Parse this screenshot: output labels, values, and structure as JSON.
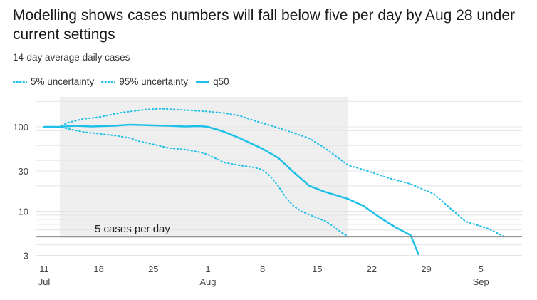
{
  "chart_data": {
    "type": "line",
    "title": "Modelling shows cases numbers will fall below five per day by Aug 28 under current settings",
    "subtitle": "14-day average daily cases",
    "y_scale": "log",
    "ylim": [
      3,
      200
    ],
    "y_ticks": [
      {
        "value": 100,
        "label": "100"
      },
      {
        "value": 30,
        "label": "30"
      },
      {
        "value": 10,
        "label": "10"
      },
      {
        "value": 3,
        "label": "3"
      }
    ],
    "x_ticks": [
      {
        "date": "2021-07-11",
        "label": "11",
        "sublabel": "Jul"
      },
      {
        "date": "2021-07-18",
        "label": "18",
        "sublabel": ""
      },
      {
        "date": "2021-07-25",
        "label": "25",
        "sublabel": ""
      },
      {
        "date": "2021-08-01",
        "label": "1",
        "sublabel": "Aug"
      },
      {
        "date": "2021-08-08",
        "label": "8",
        "sublabel": ""
      },
      {
        "date": "2021-08-15",
        "label": "15",
        "sublabel": ""
      },
      {
        "date": "2021-08-22",
        "label": "22",
        "sublabel": ""
      },
      {
        "date": "2021-08-29",
        "label": "29",
        "sublabel": ""
      },
      {
        "date": "2021-09-05",
        "label": "5",
        "sublabel": "Sep"
      }
    ],
    "xlim": [
      "2021-07-10",
      "2021-09-09"
    ],
    "grid": true,
    "legend_position": "top-left",
    "shaded_region": {
      "from": "2021-07-13",
      "to": "2021-08-19",
      "color": "#efefef"
    },
    "reference_line": {
      "value": 5,
      "label": "5 cases per day",
      "color": "#888888"
    },
    "series": [
      {
        "name": "5% uncertainty",
        "style": "dotted",
        "color": "#1ec0e8",
        "points": [
          [
            "2021-07-11",
            100
          ],
          [
            "2021-07-13",
            100
          ],
          [
            "2021-07-14",
            95
          ],
          [
            "2021-07-16",
            87
          ],
          [
            "2021-07-18",
            83
          ],
          [
            "2021-07-20",
            79
          ],
          [
            "2021-07-22",
            74
          ],
          [
            "2021-07-23",
            68
          ],
          [
            "2021-07-25",
            62
          ],
          [
            "2021-07-27",
            56
          ],
          [
            "2021-07-29",
            54
          ],
          [
            "2021-07-31",
            50
          ],
          [
            "2021-08-01",
            47
          ],
          [
            "2021-08-03",
            38
          ],
          [
            "2021-08-05",
            35
          ],
          [
            "2021-08-07",
            33
          ],
          [
            "2021-08-08",
            31
          ],
          [
            "2021-08-09",
            26
          ],
          [
            "2021-08-10",
            20
          ],
          [
            "2021-08-11",
            14.5
          ],
          [
            "2021-08-12",
            11.5
          ],
          [
            "2021-08-13",
            10
          ],
          [
            "2021-08-15",
            8.3
          ],
          [
            "2021-08-16",
            7.7
          ],
          [
            "2021-08-17",
            6.7
          ],
          [
            "2021-08-18",
            5.7
          ],
          [
            "2021-08-19",
            5
          ]
        ]
      },
      {
        "name": "95% uncertainty",
        "style": "dotted",
        "color": "#1ec0e8",
        "points": [
          [
            "2021-07-11",
            100
          ],
          [
            "2021-07-13",
            100
          ],
          [
            "2021-07-14",
            112
          ],
          [
            "2021-07-16",
            124
          ],
          [
            "2021-07-18",
            130
          ],
          [
            "2021-07-21",
            148
          ],
          [
            "2021-07-24",
            160
          ],
          [
            "2021-07-26",
            164
          ],
          [
            "2021-07-28",
            160
          ],
          [
            "2021-08-01",
            152
          ],
          [
            "2021-08-03",
            146
          ],
          [
            "2021-08-05",
            136
          ],
          [
            "2021-08-07",
            118
          ],
          [
            "2021-08-09",
            104
          ],
          [
            "2021-08-11",
            91
          ],
          [
            "2021-08-14",
            73
          ],
          [
            "2021-08-16",
            56
          ],
          [
            "2021-08-19",
            35
          ],
          [
            "2021-08-21",
            31
          ],
          [
            "2021-08-24",
            25
          ],
          [
            "2021-08-27",
            21
          ],
          [
            "2021-08-30",
            16
          ],
          [
            "2021-09-01",
            11
          ],
          [
            "2021-09-03",
            7.6
          ],
          [
            "2021-09-06",
            6.2
          ],
          [
            "2021-09-08",
            5
          ]
        ]
      },
      {
        "name": "q50",
        "style": "solid",
        "color": "#1ec0e8",
        "points": [
          [
            "2021-07-11",
            100
          ],
          [
            "2021-07-13",
            100
          ],
          [
            "2021-07-15",
            103
          ],
          [
            "2021-07-17",
            101
          ],
          [
            "2021-07-20",
            103
          ],
          [
            "2021-07-22",
            106
          ],
          [
            "2021-07-25",
            104
          ],
          [
            "2021-07-27",
            103
          ],
          [
            "2021-07-29",
            101
          ],
          [
            "2021-07-31",
            102
          ],
          [
            "2021-08-01",
            100
          ],
          [
            "2021-08-03",
            88
          ],
          [
            "2021-08-05",
            74
          ],
          [
            "2021-08-08",
            55
          ],
          [
            "2021-08-10",
            43
          ],
          [
            "2021-08-12",
            29
          ],
          [
            "2021-08-14",
            20
          ],
          [
            "2021-08-16",
            17
          ],
          [
            "2021-08-19",
            14
          ],
          [
            "2021-08-21",
            11.5
          ],
          [
            "2021-08-23",
            8.5
          ],
          [
            "2021-08-25",
            6.5
          ],
          [
            "2021-08-27",
            5.2
          ],
          [
            "2021-08-28",
            3.1
          ]
        ]
      }
    ]
  }
}
